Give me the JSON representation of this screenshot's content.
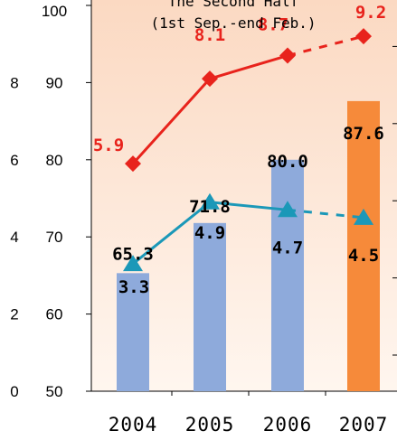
{
  "chart_data": {
    "type": "bar",
    "title_line1": "The Second Half",
    "title_line2": "(1st Sep.-end Feb.)",
    "categories": [
      "2004",
      "2005",
      "2006",
      "2007"
    ],
    "left_axis_ticks": [
      "0",
      "2",
      "4",
      "6",
      "8"
    ],
    "middle_axis_ticks": [
      "50",
      "60",
      "70",
      "80",
      "90",
      "100"
    ],
    "ylim_bar": [
      50,
      100
    ],
    "ylim_line": [
      0,
      10
    ],
    "bars": {
      "values": [
        65.3,
        71.8,
        80.0,
        87.6
      ],
      "labels": [
        "65.3",
        "71.8",
        "80.0",
        "87.6"
      ],
      "colors": [
        "#8eaadb",
        "#8eaadb",
        "#8eaadb",
        "#f68a3a"
      ]
    },
    "series": [
      {
        "values": [
          5.9,
          8.1,
          8.7,
          9.2
        ],
        "labels": [
          "5.9",
          "8.1",
          "8.7",
          "9.2"
        ],
        "color": "#e8231c",
        "marker": "diamond",
        "dashed_last_segment": true
      },
      {
        "values": [
          3.3,
          4.9,
          4.7,
          4.5
        ],
        "labels": [
          "3.3",
          "4.9",
          "4.7",
          "4.5"
        ],
        "color": "#1b98b8",
        "marker": "triangle",
        "dashed_last_segment": true
      }
    ],
    "colors": {
      "plot_bg_top": "#fbd9c2",
      "plot_bg_bottom": "#fff6ef"
    }
  }
}
